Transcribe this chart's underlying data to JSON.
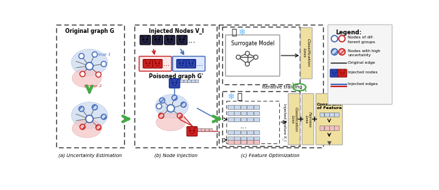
{
  "bg_color": "#ffffff",
  "label_a": "(a) Uncertainty Estimation",
  "label_b": "(b) Node Injection",
  "label_c": "(c) Feature Optimization",
  "panel_a_title": "Original graph G",
  "panel_b_title": "Injected Nodes V_I",
  "panel_b_subtitle": "Poisoned graph G'",
  "surrogate_label": "Surrogate Model",
  "classification_loss": "Classification\nLoss",
  "fairness_loss": "Fairness\nLoss",
  "constraint_label": "Constraint\nof Feature",
  "injected_feature_label": "Injected Feature X_I",
  "iterative_training": "Iterative training",
  "group1_label": "Group 1",
  "group2_label": "Group 2",
  "legend_title": "Legend:",
  "leg1": "Nodes of dif-\nferent groups",
  "leg2": "Nodes with high\nuncertainty",
  "leg3": "Original edge",
  "leg4": "Injected nodes",
  "leg5": "Injected edges",
  "blue": "#4169b8",
  "red": "#cc2222",
  "green": "#44aa44",
  "light_blue_fill": "#c8d8f0",
  "light_red_fill": "#f4c0c0",
  "yellow_bg": "#f0e0a0",
  "dark_mask": "#222244",
  "red_mask": "#cc2222",
  "blue_mask": "#3344aa"
}
